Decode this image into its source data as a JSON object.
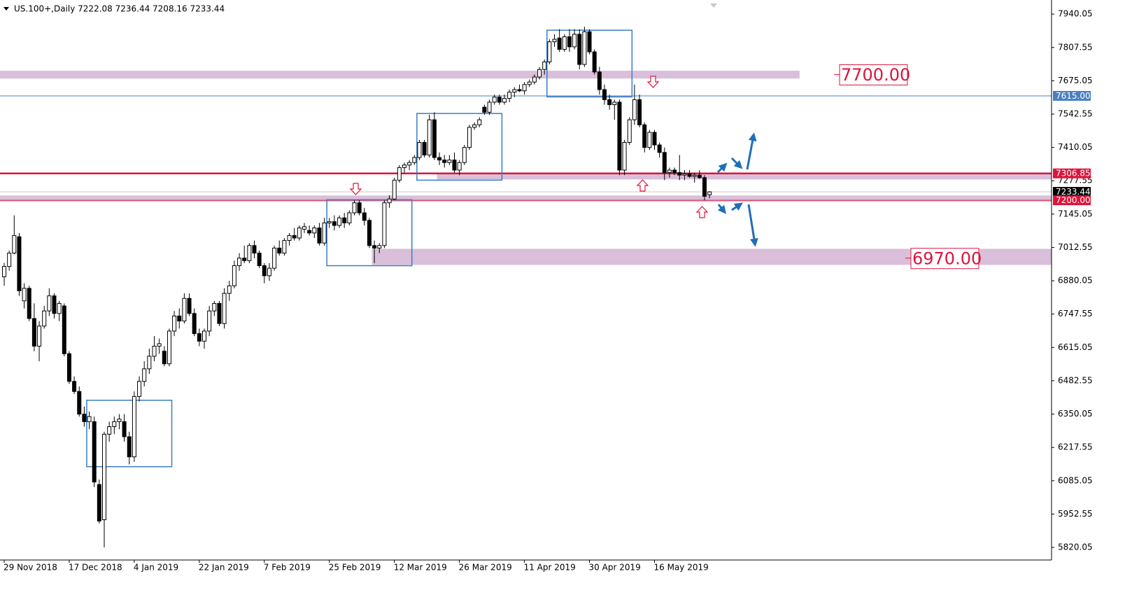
{
  "chart_data": {
    "type": "candlestick",
    "title": "US.100+,Daily  7222.08 7236.44 7208.16 7233.44",
    "categories": [
      "29 Nov 2018",
      null,
      null,
      null,
      null,
      null,
      null,
      null,
      null,
      null,
      null,
      null,
      null,
      "17 Dec 2018",
      null,
      null,
      null,
      null,
      null,
      null,
      null,
      null,
      null,
      null,
      null,
      null,
      "4 Jan 2019",
      null,
      null,
      null,
      null,
      null,
      null,
      null,
      null,
      null,
      null,
      null,
      null,
      "22 Jan 2019",
      null,
      null,
      null,
      null,
      null,
      null,
      null,
      null,
      null,
      null,
      null,
      null,
      "7 Feb 2019",
      null,
      null,
      null,
      null,
      null,
      null,
      null,
      null,
      null,
      null,
      null,
      null,
      "25 Feb 2019",
      null,
      null,
      null,
      null,
      null,
      null,
      null,
      null,
      null,
      null,
      null,
      null,
      "12 Mar 2019",
      null,
      null,
      null,
      null,
      null,
      null,
      null,
      null,
      null,
      null,
      null,
      null,
      "26 Mar 2019",
      null,
      null,
      null,
      null,
      null,
      null,
      null,
      null,
      null,
      null,
      null,
      null,
      "11 Apr 2019",
      null,
      null,
      null,
      null,
      null,
      null,
      null,
      null,
      null,
      null,
      null,
      null,
      "30 Apr 2019",
      null,
      null,
      null,
      null,
      null,
      null,
      null,
      null,
      null,
      null,
      null,
      null,
      "16 May 2019",
      null,
      null,
      null,
      null,
      null,
      null,
      null,
      null,
      null,
      null,
      null
    ],
    "candles": [
      [
        6896,
        6951,
        6860,
        6937
      ],
      [
        6937,
        7000,
        6920,
        6990
      ],
      [
        6990,
        7140,
        6985,
        7060
      ],
      [
        7055,
        7070,
        6820,
        6840
      ],
      [
        6800,
        6870,
        6770,
        6850
      ],
      [
        6850,
        6860,
        6720,
        6730
      ],
      [
        6730,
        6790,
        6600,
        6620
      ],
      [
        6620,
        6720,
        6560,
        6700
      ],
      [
        6700,
        6780,
        6690,
        6760
      ],
      [
        6760,
        6850,
        6740,
        6820
      ],
      [
        6820,
        6830,
        6730,
        6750
      ],
      [
        6750,
        6800,
        6720,
        6790
      ],
      [
        6780,
        6790,
        6580,
        6590
      ],
      [
        6590,
        6600,
        6470,
        6480
      ],
      [
        6480,
        6500,
        6430,
        6440
      ],
      [
        6440,
        6460,
        6340,
        6350
      ],
      [
        6350,
        6380,
        6300,
        6320
      ],
      [
        6320,
        6360,
        6290,
        6340
      ],
      [
        6320,
        6340,
        6060,
        6080
      ],
      [
        6070,
        6090,
        5915,
        5925
      ],
      [
        5930,
        6280,
        5820,
        6270
      ],
      [
        6270,
        6320,
        6240,
        6300
      ],
      [
        6300,
        6340,
        6270,
        6320
      ],
      [
        6320,
        6350,
        6290,
        6330
      ],
      [
        6320,
        6350,
        6240,
        6260
      ],
      [
        6260,
        6280,
        6150,
        6180
      ],
      [
        6180,
        6440,
        6160,
        6420
      ],
      [
        6420,
        6500,
        6400,
        6480
      ],
      [
        6480,
        6560,
        6460,
        6530
      ],
      [
        6530,
        6610,
        6510,
        6580
      ],
      [
        6580,
        6660,
        6560,
        6620
      ],
      [
        6620,
        6650,
        6590,
        6630
      ],
      [
        6600,
        6620,
        6540,
        6550
      ],
      [
        6550,
        6690,
        6540,
        6680
      ],
      [
        6680,
        6760,
        6660,
        6740
      ],
      [
        6740,
        6770,
        6690,
        6720
      ],
      [
        6720,
        6830,
        6710,
        6810
      ],
      [
        6810,
        6830,
        6740,
        6750
      ],
      [
        6750,
        6770,
        6660,
        6670
      ],
      [
        6670,
        6690,
        6620,
        6640
      ],
      [
        6640,
        6690,
        6610,
        6680
      ],
      [
        6680,
        6780,
        6660,
        6760
      ],
      [
        6760,
        6800,
        6740,
        6790
      ],
      [
        6790,
        6800,
        6700,
        6710
      ],
      [
        6710,
        6850,
        6690,
        6830
      ],
      [
        6830,
        6880,
        6800,
        6860
      ],
      [
        6860,
        6960,
        6850,
        6940
      ],
      [
        6940,
        6990,
        6920,
        6970
      ],
      [
        6970,
        7020,
        6950,
        6960
      ],
      [
        6960,
        7030,
        6950,
        7020
      ],
      [
        7020,
        7040,
        6970,
        6990
      ],
      [
        6990,
        7000,
        6930,
        6940
      ],
      [
        6940,
        6950,
        6870,
        6900
      ],
      [
        6900,
        6950,
        6880,
        6930
      ],
      [
        6930,
        7020,
        6920,
        7010
      ],
      [
        7010,
        7040,
        6980,
        6990
      ],
      [
        6990,
        7050,
        6980,
        7040
      ],
      [
        7040,
        7070,
        7020,
        7060
      ],
      [
        7060,
        7090,
        7040,
        7050
      ],
      [
        7050,
        7100,
        7040,
        7090
      ],
      [
        7085,
        7110,
        7070,
        7095
      ],
      [
        7080,
        7100,
        7060,
        7070
      ],
      [
        7070,
        7100,
        7050,
        7090
      ],
      [
        7090,
        7110,
        7020,
        7030
      ],
      [
        7030,
        7130,
        7020,
        7110
      ],
      [
        7110,
        7130,
        7090,
        7115
      ],
      [
        7115,
        7140,
        7080,
        7100
      ],
      [
        7100,
        7140,
        7090,
        7130
      ],
      [
        7130,
        7150,
        7090,
        7110
      ],
      [
        7110,
        7160,
        7100,
        7150
      ],
      [
        7150,
        7200,
        7140,
        7190
      ],
      [
        7190,
        7200,
        7140,
        7150
      ],
      [
        7150,
        7170,
        7100,
        7120
      ],
      [
        7120,
        7130,
        7010,
        7020
      ],
      [
        7020,
        7040,
        6950,
        7010
      ],
      [
        7010,
        7030,
        6990,
        7020
      ],
      [
        7020,
        7200,
        7010,
        7190
      ],
      [
        7190,
        7220,
        7170,
        7205
      ],
      [
        7205,
        7290,
        7200,
        7280
      ],
      [
        7280,
        7340,
        7270,
        7330
      ],
      [
        7330,
        7350,
        7310,
        7340
      ],
      [
        7340,
        7360,
        7320,
        7350
      ],
      [
        7350,
        7380,
        7340,
        7370
      ],
      [
        7370,
        7440,
        7360,
        7430
      ],
      [
        7430,
        7440,
        7370,
        7380
      ],
      [
        7380,
        7540,
        7370,
        7520
      ],
      [
        7520,
        7550,
        7360,
        7370
      ],
      [
        7370,
        7390,
        7340,
        7360
      ],
      [
        7360,
        7380,
        7330,
        7350
      ],
      [
        7350,
        7380,
        7340,
        7360
      ],
      [
        7360,
        7390,
        7310,
        7320
      ],
      [
        7320,
        7360,
        7300,
        7350
      ],
      [
        7350,
        7420,
        7340,
        7410
      ],
      [
        7410,
        7500,
        7400,
        7490
      ],
      [
        7490,
        7510,
        7480,
        7500
      ],
      [
        7500,
        7530,
        7490,
        7520
      ],
      [
        7570,
        7580,
        7540,
        7550
      ],
      [
        7550,
        7600,
        7540,
        7590
      ],
      [
        7590,
        7620,
        7580,
        7610
      ],
      [
        7610,
        7620,
        7580,
        7590
      ],
      [
        7590,
        7620,
        7580,
        7605
      ],
      [
        7605,
        7640,
        7590,
        7630
      ],
      [
        7630,
        7650,
        7610,
        7640
      ],
      [
        7640,
        7660,
        7630,
        7635
      ],
      [
        7635,
        7670,
        7620,
        7660
      ],
      [
        7660,
        7680,
        7650,
        7670
      ],
      [
        7670,
        7700,
        7660,
        7690
      ],
      [
        7690,
        7730,
        7680,
        7720
      ],
      [
        7720,
        7760,
        7700,
        7750
      ],
      [
        7750,
        7840,
        7740,
        7830
      ],
      [
        7830,
        7860,
        7810,
        7840
      ],
      [
        7845,
        7880,
        7790,
        7800
      ],
      [
        7800,
        7860,
        7790,
        7850
      ],
      [
        7850,
        7880,
        7790,
        7810
      ],
      [
        7810,
        7880,
        7800,
        7860
      ],
      [
        7860,
        7880,
        7720,
        7740
      ],
      [
        7740,
        7890,
        7730,
        7870
      ],
      [
        7870,
        7880,
        7780,
        7790
      ],
      [
        7790,
        7800,
        7700,
        7710
      ],
      [
        7710,
        7730,
        7620,
        7640
      ],
      [
        7640,
        7660,
        7580,
        7600
      ],
      [
        7600,
        7620,
        7560,
        7580
      ],
      [
        7580,
        7600,
        7520,
        7590
      ],
      [
        7590,
        7600,
        7300,
        7320
      ],
      [
        7320,
        7440,
        7300,
        7430
      ],
      [
        7430,
        7530,
        7420,
        7520
      ],
      [
        7520,
        7660,
        7500,
        7600
      ],
      [
        7600,
        7620,
        7490,
        7500
      ],
      [
        7500,
        7510,
        7390,
        7410
      ],
      [
        7410,
        7480,
        7400,
        7470
      ],
      [
        7470,
        7480,
        7400,
        7420
      ],
      [
        7420,
        7430,
        7370,
        7390
      ],
      [
        7390,
        7410,
        7280,
        7310
      ],
      [
        7310,
        7330,
        7290,
        7320
      ],
      [
        7320,
        7330,
        7300,
        7310
      ],
      [
        7310,
        7380,
        7280,
        7300
      ],
      [
        7300,
        7320,
        7280,
        7305
      ],
      [
        7305,
        7320,
        7290,
        7295
      ],
      [
        7295,
        7310,
        7270,
        7300
      ],
      [
        7300,
        7320,
        7285,
        7290
      ],
      [
        7290,
        7300,
        7200,
        7216
      ],
      [
        7222.08,
        7236.44,
        7208.16,
        7233.44
      ]
    ],
    "ylim": [
      5770,
      7985
    ],
    "yticks": [
      7940.05,
      7807.55,
      7675.05,
      7542.55,
      7410.05,
      7277.55,
      7145.05,
      7012.55,
      6880.05,
      6747.55,
      6615.05,
      6482.55,
      6350.05,
      6217.55,
      6085.05,
      5952.55,
      5820.05
    ],
    "levels": [
      {
        "value": 7615,
        "label": "7615.00",
        "color": "#4a7fbf",
        "width": 1
      },
      {
        "value": 7306.85,
        "label": "7306.85",
        "color": "#dc143c",
        "width": 2.5
      },
      {
        "value": 7233.44,
        "label": "7233.44",
        "color": "#000000",
        "width": 0
      },
      {
        "value": 7200,
        "label": "7200.00",
        "color": "#dc143c",
        "width": 1
      }
    ],
    "zones": [
      {
        "top": 7715,
        "bottom": 7684,
        "from": 0,
        "to": 159
      },
      {
        "top": 7308,
        "bottom": 7283,
        "from": 87,
        "to": 210
      },
      {
        "top": 7219,
        "bottom": 7194,
        "from": 0,
        "to": 210
      },
      {
        "top": 7007,
        "bottom": 6943,
        "from": 74,
        "to": 210
      }
    ],
    "boxes": [
      {
        "top": 6405,
        "bottom": 6141,
        "from": 17,
        "to": 33
      },
      {
        "top": 7202,
        "bottom": 6940,
        "from": 65,
        "to": 81
      },
      {
        "top": 7545,
        "bottom": 7280,
        "from": 83,
        "to": 99
      },
      {
        "top": 7876,
        "bottom": 7611,
        "from": 109,
        "to": 125
      }
    ],
    "annotations": [
      {
        "value": 7700,
        "label": "7700.00"
      },
      {
        "value": 6970,
        "label": "6970.00"
      }
    ]
  }
}
